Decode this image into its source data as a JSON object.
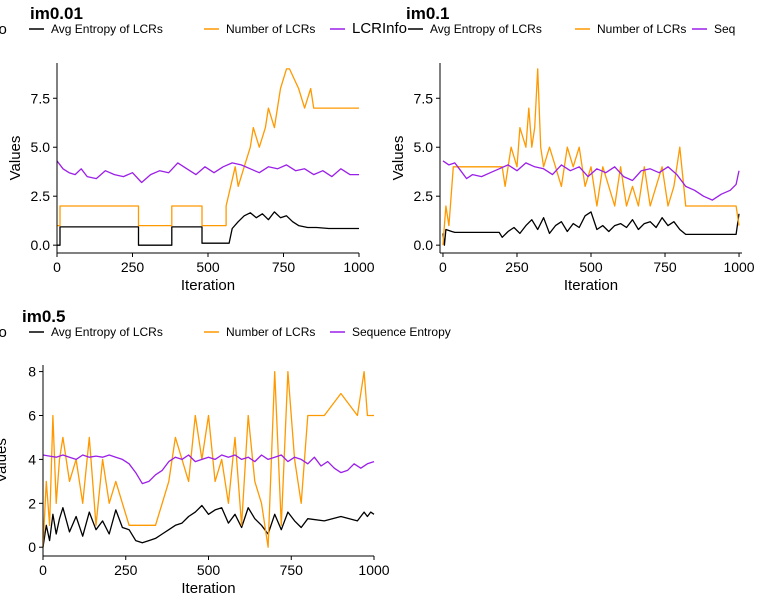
{
  "colors": {
    "Avg Entropy of LCRs": "#000000",
    "Number of LCRs": "#FF9900",
    "Sequence Entropy": "#9B1FE8"
  },
  "legend_title": "LCRInfo",
  "chart_data": [
    {
      "type": "line",
      "title": "im0.01",
      "xlabel": "Iteration",
      "ylabel": "Values",
      "xlim": [
        0,
        1000
      ],
      "ylim": [
        -0.4,
        9.3
      ],
      "xticks": [
        0,
        250,
        500,
        750,
        1000
      ],
      "yticks": [
        0.0,
        2.5,
        5.0,
        7.5
      ],
      "ytick_labels": [
        "0.0",
        "2.5",
        "5.0",
        "7.5"
      ],
      "legend": [
        "Avg Entropy of LCRs",
        "Number of LCRs",
        "LCRInfo"
      ],
      "series": [
        {
          "name": "Avg Entropy of LCRs",
          "x": [
            0,
            10,
            10,
            270,
            270,
            380,
            380,
            480,
            480,
            500,
            500,
            570,
            580,
            600,
            620,
            640,
            660,
            680,
            700,
            720,
            740,
            760,
            780,
            800,
            830,
            860,
            900,
            1000
          ],
          "y": [
            0,
            0,
            0.93,
            0.93,
            0,
            0,
            0.93,
            0.93,
            0.1,
            0.1,
            0.1,
            0.1,
            0.85,
            1.2,
            1.5,
            1.65,
            1.4,
            1.6,
            1.3,
            1.7,
            1.4,
            1.5,
            1.2,
            1.0,
            0.9,
            0.9,
            0.85,
            0.85
          ]
        },
        {
          "name": "Number of LCRs",
          "x": [
            0,
            10,
            10,
            270,
            270,
            380,
            380,
            480,
            480,
            500,
            500,
            560,
            560,
            590,
            600,
            620,
            640,
            650,
            670,
            690,
            700,
            720,
            740,
            760,
            770,
            800,
            820,
            840,
            850,
            1000
          ],
          "y": [
            1,
            1,
            2,
            2,
            1,
            1,
            2,
            2,
            1,
            1,
            1,
            1,
            2,
            4,
            3,
            4,
            5,
            6,
            5,
            6,
            7,
            6,
            8,
            9,
            9,
            8,
            7,
            8,
            7,
            7
          ]
        },
        {
          "name": "Sequence Entropy",
          "x": [
            0,
            20,
            40,
            60,
            80,
            100,
            130,
            160,
            190,
            220,
            250,
            280,
            310,
            340,
            370,
            400,
            430,
            460,
            490,
            520,
            550,
            580,
            610,
            640,
            670,
            700,
            730,
            760,
            790,
            820,
            850,
            880,
            910,
            940,
            970,
            1000
          ],
          "y": [
            4.3,
            3.9,
            3.7,
            3.6,
            3.9,
            3.5,
            3.4,
            3.8,
            3.6,
            3.5,
            3.7,
            3.2,
            3.6,
            3.8,
            3.7,
            4.2,
            3.9,
            3.6,
            4.0,
            3.7,
            4.0,
            4.2,
            4.1,
            3.9,
            3.7,
            4.0,
            3.9,
            4.1,
            3.8,
            3.9,
            3.6,
            3.8,
            3.5,
            3.9,
            3.6,
            3.6
          ]
        }
      ]
    },
    {
      "type": "line",
      "title": "im0.1",
      "xlabel": "Iteration",
      "ylabel": "Values",
      "xlim": [
        -10,
        1010
      ],
      "ylim": [
        -0.4,
        9.3
      ],
      "xticks": [
        0,
        250,
        500,
        750,
        1000
      ],
      "yticks": [
        0.0,
        2.5,
        5.0,
        7.5
      ],
      "ytick_labels": [
        "0.0",
        "2.5",
        "5.0",
        "7.5"
      ],
      "legend": [
        "Avg Entropy of LCRs",
        "Number of LCRs",
        "Seq"
      ],
      "series": [
        {
          "name": "Avg Entropy of LCRs",
          "x": [
            0,
            5,
            10,
            30,
            40,
            190,
            200,
            220,
            240,
            260,
            280,
            300,
            320,
            340,
            360,
            380,
            400,
            420,
            440,
            460,
            480,
            500,
            520,
            540,
            560,
            580,
            600,
            620,
            640,
            660,
            680,
            700,
            720,
            740,
            760,
            780,
            800,
            820,
            990,
            1000
          ],
          "y": [
            0.6,
            0,
            0.8,
            0.7,
            0.65,
            0.65,
            0.4,
            0.7,
            0.9,
            0.6,
            1.0,
            1.3,
            0.8,
            1.4,
            0.6,
            1.0,
            1.2,
            0.7,
            1.1,
            0.9,
            1.5,
            1.7,
            0.8,
            1.0,
            0.7,
            1.0,
            1.1,
            0.9,
            1.3,
            0.8,
            1.1,
            1.2,
            0.9,
            1.4,
            1.0,
            1.2,
            0.8,
            0.55,
            0.55,
            1.6
          ]
        },
        {
          "name": "Number of LCRs",
          "x": [
            0,
            5,
            10,
            20,
            25,
            35,
            40,
            200,
            210,
            230,
            250,
            260,
            280,
            290,
            300,
            310,
            320,
            330,
            340,
            360,
            380,
            400,
            420,
            440,
            460,
            480,
            500,
            520,
            540,
            560,
            580,
            600,
            620,
            640,
            660,
            680,
            700,
            720,
            740,
            760,
            780,
            800,
            820,
            990,
            1000
          ],
          "y": [
            0,
            1,
            2,
            1,
            2,
            4,
            4,
            4,
            3,
            5,
            4,
            6,
            5,
            7,
            5,
            6,
            9,
            5,
            4,
            5,
            4,
            3,
            5,
            4,
            5,
            3,
            4,
            2,
            4,
            3,
            2,
            4,
            2,
            3,
            2,
            4,
            2,
            3,
            4,
            2,
            3,
            5,
            2,
            2,
            1
          ]
        },
        {
          "name": "Sequence Entropy",
          "x": [
            0,
            20,
            40,
            60,
            80,
            100,
            130,
            160,
            190,
            220,
            250,
            280,
            310,
            340,
            370,
            400,
            430,
            460,
            490,
            520,
            550,
            580,
            610,
            640,
            670,
            700,
            730,
            760,
            790,
            820,
            850,
            880,
            910,
            940,
            970,
            990,
            1000
          ],
          "y": [
            4.3,
            4.1,
            4.2,
            3.8,
            3.4,
            3.6,
            3.5,
            3.7,
            3.9,
            4.1,
            3.8,
            4.2,
            4.0,
            3.9,
            3.6,
            4.1,
            3.8,
            4.0,
            3.5,
            3.9,
            3.7,
            4.0,
            3.5,
            3.3,
            3.8,
            3.9,
            3.7,
            4.0,
            3.6,
            3.0,
            2.8,
            2.5,
            2.3,
            2.6,
            2.8,
            3.1,
            3.8
          ]
        }
      ]
    },
    {
      "type": "line",
      "title": "im0.5",
      "xlabel": "Iteration",
      "ylabel": "Values",
      "xlim": [
        0,
        1000
      ],
      "ylim": [
        -0.4,
        8.3
      ],
      "xticks": [
        0,
        250,
        500,
        750,
        1000
      ],
      "yticks": [
        0,
        2,
        4,
        6,
        8
      ],
      "ytick_labels": [
        "0",
        "2",
        "4",
        "6",
        "8"
      ],
      "legend": [
        "Avg Entropy of LCRs",
        "Number of LCRs",
        "Sequence Entropy"
      ],
      "series": [
        {
          "name": "Avg Entropy of LCRs",
          "x": [
            0,
            10,
            20,
            30,
            40,
            50,
            60,
            80,
            100,
            120,
            140,
            160,
            180,
            200,
            220,
            240,
            260,
            280,
            300,
            320,
            340,
            360,
            380,
            400,
            420,
            440,
            460,
            480,
            500,
            520,
            540,
            560,
            580,
            600,
            620,
            640,
            660,
            680,
            700,
            720,
            740,
            760,
            780,
            800,
            850,
            900,
            950,
            970,
            980,
            990,
            1000
          ],
          "y": [
            0,
            1.0,
            0.3,
            1.5,
            0.6,
            1.3,
            1.8,
            0.7,
            1.4,
            0.5,
            1.6,
            0.8,
            1.2,
            0.6,
            1.7,
            0.9,
            0.8,
            0.3,
            0.2,
            0.3,
            0.4,
            0.6,
            0.8,
            1.0,
            1.1,
            1.4,
            1.6,
            1.9,
            1.5,
            1.7,
            1.8,
            1.1,
            1.5,
            0.9,
            1.8,
            1.3,
            1.0,
            0.6,
            1.5,
            0.8,
            1.6,
            1.2,
            0.9,
            1.3,
            1.2,
            1.4,
            1.2,
            1.6,
            1.4,
            1.6,
            1.5
          ]
        },
        {
          "name": "Number of LCRs",
          "x": [
            0,
            10,
            20,
            30,
            40,
            50,
            60,
            80,
            100,
            120,
            140,
            160,
            180,
            200,
            220,
            240,
            260,
            280,
            300,
            320,
            340,
            360,
            380,
            400,
            420,
            440,
            460,
            480,
            500,
            520,
            540,
            560,
            580,
            600,
            620,
            640,
            660,
            680,
            700,
            720,
            740,
            760,
            780,
            800,
            850,
            900,
            950,
            970,
            980,
            990,
            1000
          ],
          "y": [
            0,
            3,
            1,
            6,
            2,
            4,
            5,
            3,
            4,
            2,
            5,
            1,
            4,
            2,
            3,
            2,
            1,
            1,
            1,
            1,
            1,
            2,
            3,
            5,
            4,
            3,
            6,
            4,
            6,
            3,
            4,
            2,
            5,
            1,
            6,
            3,
            2,
            0,
            8,
            1,
            8,
            4,
            2,
            6,
            6,
            7,
            6,
            8,
            6,
            6,
            6
          ]
        },
        {
          "name": "Sequence Entropy",
          "x": [
            0,
            20,
            40,
            60,
            80,
            100,
            120,
            140,
            160,
            180,
            200,
            220,
            240,
            260,
            280,
            300,
            320,
            340,
            360,
            380,
            400,
            420,
            440,
            460,
            480,
            500,
            520,
            540,
            560,
            580,
            600,
            620,
            640,
            660,
            680,
            700,
            720,
            740,
            760,
            780,
            800,
            820,
            840,
            860,
            880,
            900,
            920,
            940,
            960,
            980,
            1000
          ],
          "y": [
            4.2,
            4.15,
            4.1,
            4.2,
            4.1,
            4.0,
            4.2,
            4.1,
            4.15,
            4.1,
            4.2,
            4.1,
            4.0,
            3.8,
            3.4,
            2.9,
            3.0,
            3.3,
            3.5,
            3.9,
            4.1,
            4.0,
            4.2,
            3.9,
            4.0,
            4.1,
            4.0,
            4.2,
            4.1,
            4.2,
            4.0,
            4.1,
            3.9,
            4.2,
            4.0,
            4.1,
            4.2,
            3.9,
            4.1,
            4.0,
            3.8,
            4.1,
            3.7,
            3.9,
            3.6,
            3.4,
            3.5,
            3.8,
            3.6,
            3.8,
            3.9
          ]
        }
      ]
    }
  ]
}
